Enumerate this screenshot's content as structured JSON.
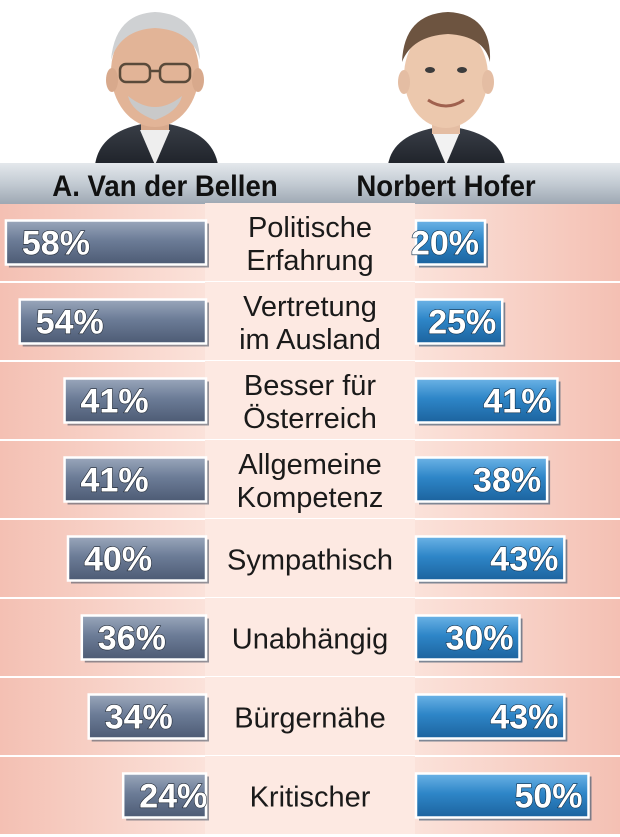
{
  "chart_data": {
    "type": "bar",
    "orientation": "horizontal-diverging",
    "categories": [
      "Politische Erfahrung",
      "Vertretung im Ausland",
      "Besser für Österreich",
      "Allgemeine Kompetenz",
      "Sympathisch",
      "Unabhängig",
      "Bürgernähe",
      "Kritischer"
    ],
    "category_lines": [
      [
        "Politische",
        "Erfahrung"
      ],
      [
        "Vertretung",
        "im Ausland"
      ],
      [
        "Besser für",
        "Österreich"
      ],
      [
        "Allgemeine",
        "Kompetenz"
      ],
      [
        "Sympathisch"
      ],
      [
        "Unabhängig"
      ],
      [
        "Bürgernähe"
      ],
      [
        "Kritischer"
      ]
    ],
    "series": [
      {
        "name": "A. Van der Bellen",
        "values": [
          58,
          54,
          41,
          41,
          40,
          36,
          34,
          24
        ],
        "labels": [
          "58%",
          "54%",
          "41%",
          "41%",
          "40%",
          "36%",
          "34%",
          "24%"
        ],
        "color": "#6f7f99"
      },
      {
        "name": "Norbert Hofer",
        "values": [
          20,
          25,
          41,
          38,
          43,
          30,
          43,
          50
        ],
        "labels": [
          "20%",
          "25%",
          "41%",
          "38%",
          "43%",
          "30%",
          "43%",
          "50%"
        ],
        "color": "#2f86c8"
      }
    ],
    "unit": "%",
    "legend": "top",
    "colors": {
      "header_bar": "#b9c2cc",
      "row_band": "#f2b4a6",
      "center_column": "#fbe6df"
    }
  }
}
